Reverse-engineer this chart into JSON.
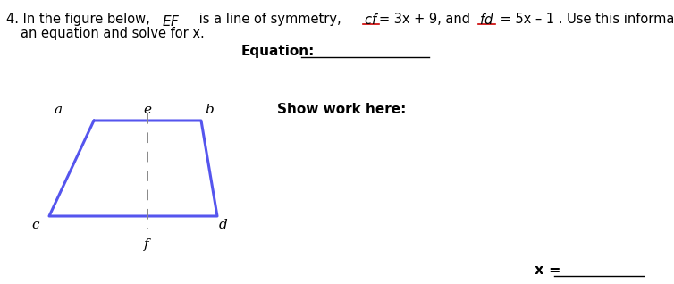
{
  "bg": "#ffffff",
  "trap_color": "#5555ee",
  "dash_color": "#888888",
  "text_color": "#000000",
  "red_color": "#cc0000",
  "bold_color": "#1a1a1a",
  "fs_main": 10.5,
  "fs_label": 11,
  "fs_bold": 11,
  "label_a": "a",
  "label_b": "b",
  "label_c": "c",
  "label_d": "d",
  "label_e": "e",
  "label_f": "f"
}
